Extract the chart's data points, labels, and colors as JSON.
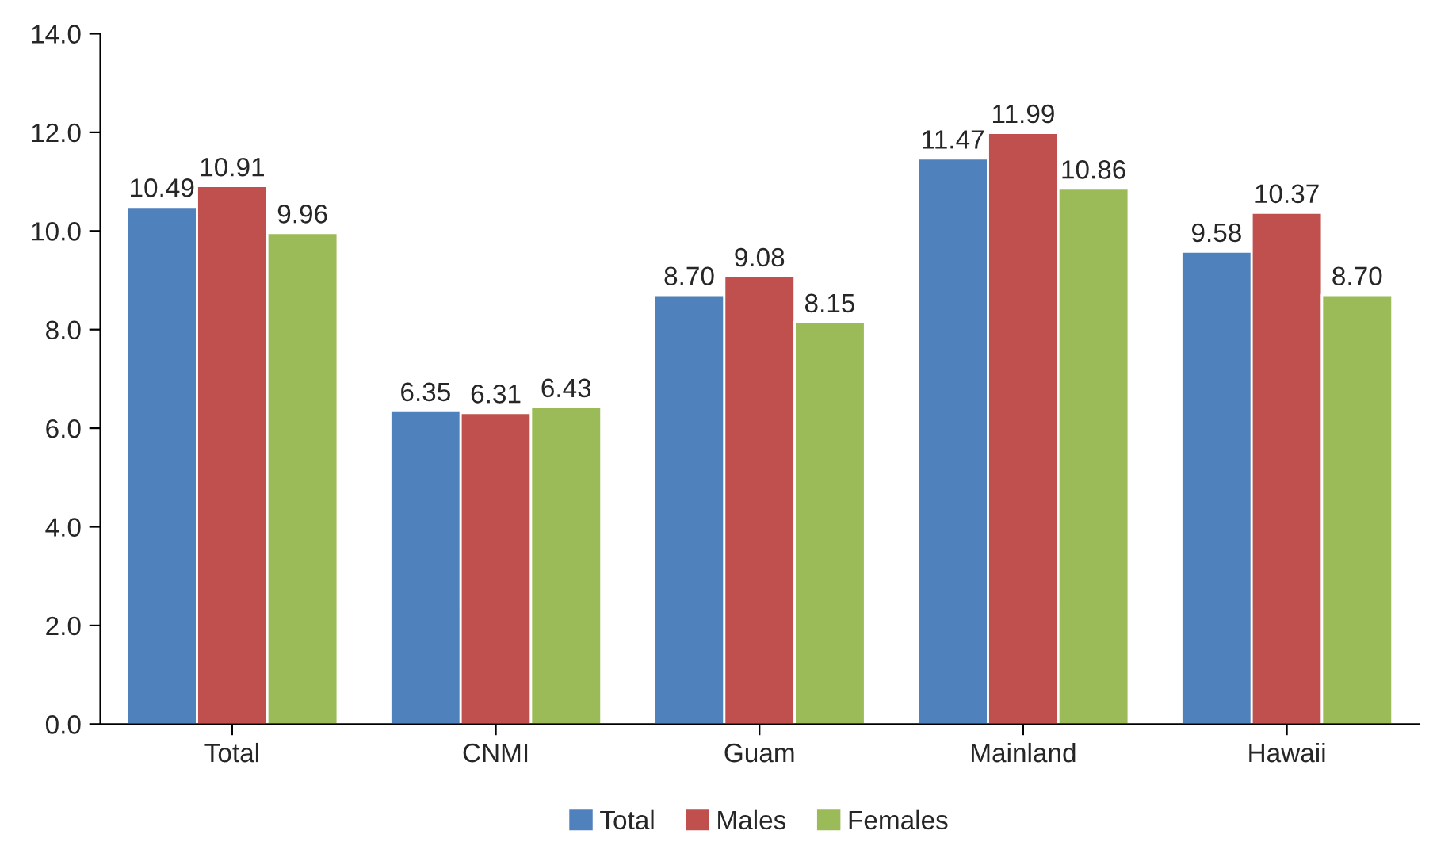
{
  "chart_data": {
    "type": "bar",
    "categories": [
      "Total",
      "CNMI",
      "Guam",
      "Mainland",
      "Hawaii"
    ],
    "series": [
      {
        "name": "Total",
        "color": "#4f81bd",
        "values": [
          10.49,
          6.35,
          8.7,
          11.47,
          9.58
        ],
        "value_labels": [
          "10.49",
          "6.35",
          "8.70",
          "11.47",
          "9.58"
        ]
      },
      {
        "name": "Males",
        "color": "#c0504d",
        "values": [
          10.91,
          6.31,
          9.08,
          11.99,
          10.37
        ],
        "value_labels": [
          "10.91",
          "6.31",
          "9.08",
          "11.99",
          "10.37"
        ]
      },
      {
        "name": "Females",
        "color": "#9bbb59",
        "values": [
          9.96,
          6.43,
          8.15,
          10.86,
          8.7
        ],
        "value_labels": [
          "9.96",
          "6.43",
          "8.15",
          "10.86",
          "8.70"
        ]
      }
    ],
    "ylim": [
      0,
      14
    ],
    "yticks": [
      {
        "value": 0,
        "label": "0.0"
      },
      {
        "value": 2,
        "label": "2.0"
      },
      {
        "value": 4,
        "label": "4.0"
      },
      {
        "value": 6,
        "label": "6.0"
      },
      {
        "value": 8,
        "label": "8.0"
      },
      {
        "value": 10,
        "label": "10.0"
      },
      {
        "value": 12,
        "label": "12.0"
      },
      {
        "value": 14,
        "label": "14.0"
      }
    ],
    "grid": false,
    "legend": "bottom"
  }
}
